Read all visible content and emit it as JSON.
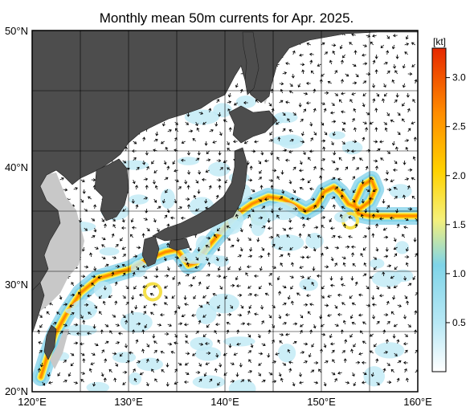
{
  "title": "Monthly mean 50m currents for Apr. 2025.",
  "map": {
    "lon_range": [
      120,
      160
    ],
    "lat_range": [
      20,
      50
    ],
    "lon_ticks": [
      120,
      130,
      140,
      150,
      160
    ],
    "lat_ticks": [
      20,
      30,
      40,
      50
    ],
    "lon_labels": [
      "120°E",
      "130°E",
      "140°E",
      "150°E",
      "160°E"
    ],
    "lat_labels": [
      "20°N",
      "30°N",
      "40°N",
      "50°N"
    ],
    "grid": true,
    "land_color": "#4d4d4d",
    "shelf_color": "#c8c8c8",
    "ocean_color": "#ffffff"
  },
  "colorbar": {
    "unit": "[kt]",
    "range": [
      0,
      3.3
    ],
    "ticks": [
      "0.5",
      "1.0",
      "1.5",
      "2.0",
      "2.5",
      "3.0"
    ],
    "tick_values": [
      0.5,
      1.0,
      1.5,
      2.0,
      2.5,
      3.0
    ],
    "colors": [
      "#ffffff",
      "#b8e8f5",
      "#7fd4e8",
      "#f5f07a",
      "#ffd200",
      "#ff8c00",
      "#e62800"
    ]
  },
  "kuroshio_path": {
    "lon": [
      120.9,
      121.6,
      122.4,
      123.5,
      125.0,
      126.8,
      128.5,
      130.2,
      132.0,
      133.8,
      135.0,
      135.6,
      136.2,
      137.0,
      138.0,
      139.5,
      141.2,
      142.8,
      144.5,
      146.0,
      147.5,
      148.4,
      149.5,
      150.3,
      151.3,
      152.0,
      152.8,
      154.0,
      155.0,
      155.6,
      155.2,
      154.2,
      153.4,
      153.8,
      155.0,
      156.5,
      158.0,
      160.0
    ],
    "lat": [
      21.2,
      23.0,
      24.8,
      26.4,
      28.2,
      29.4,
      29.8,
      30.2,
      31.0,
      31.6,
      31.8,
      31.2,
      30.5,
      30.7,
      31.8,
      33.2,
      34.7,
      35.6,
      36.2,
      36.0,
      35.4,
      35.0,
      35.5,
      36.6,
      37.0,
      36.5,
      35.6,
      35.2,
      35.8,
      36.8,
      37.6,
      37.1,
      35.7,
      34.8,
      34.6,
      34.6,
      34.6,
      34.6
    ]
  }
}
